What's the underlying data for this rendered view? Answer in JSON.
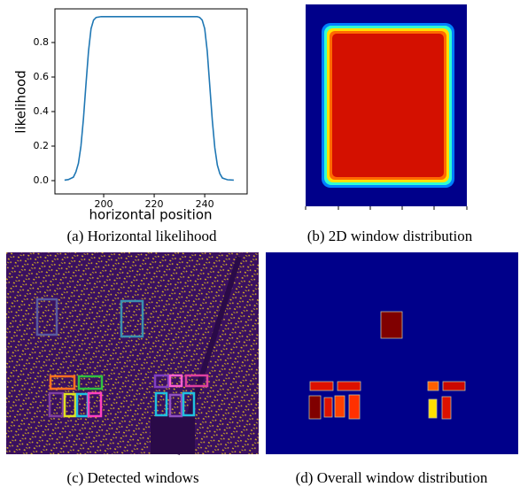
{
  "chart_data": {
    "type": "line",
    "xlabel": "horizontal position",
    "ylabel": "likelihood",
    "x": [
      184.5,
      186,
      188,
      189,
      190,
      191,
      192,
      193,
      194,
      195,
      196,
      197,
      199,
      210,
      220,
      230,
      237,
      238,
      239,
      240,
      241,
      242,
      243,
      244,
      245,
      246,
      247,
      249,
      251.5
    ],
    "series": [
      {
        "color": "#1f77b4",
        "values": [
          0.003,
          0.006,
          0.02,
          0.05,
          0.1,
          0.2,
          0.36,
          0.56,
          0.75,
          0.88,
          0.93,
          0.945,
          0.95,
          0.95,
          0.95,
          0.95,
          0.95,
          0.945,
          0.93,
          0.88,
          0.75,
          0.55,
          0.35,
          0.19,
          0.09,
          0.04,
          0.015,
          0.005,
          0.003
        ]
      }
    ],
    "xlim": [
      180.7,
      256.8
    ],
    "ylim": [
      -0.077,
      0.995
    ],
    "xticks": [
      200,
      220,
      240
    ],
    "yticks": [
      {
        "value": 0,
        "label": "0.0"
      },
      0.2,
      0.4,
      0.6,
      0.8
    ]
  },
  "captions": [
    "(a) Horizontal likelihood",
    "(b) 2D window distribution",
    "(c) Detected windows",
    "(d) Overall window distribution"
  ]
}
